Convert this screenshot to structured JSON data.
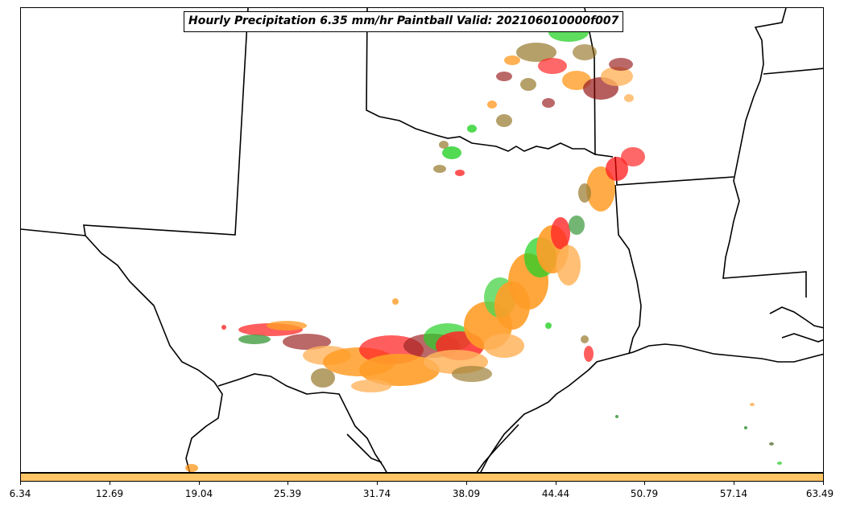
{
  "title": "Hourly Precipitation 6.35 mm/hr Paintball Valid: 202106010000f007",
  "map": {
    "region": "Southern Plains / Texas",
    "colors": {
      "borders": "#000000",
      "colorbar_fill": "#ffc466",
      "paintball_members": [
        "#ff8c00",
        "#ff0000",
        "#00c800",
        "#8b0000",
        "#8b6914",
        "#ffa640",
        "#32cd32",
        "#228b22",
        "#b22222",
        "#556b2f"
      ]
    }
  },
  "colorbar": {
    "ticks": [
      "6.34",
      "12.69",
      "19.04",
      "25.39",
      "31.74",
      "38.09",
      "44.44",
      "50.79",
      "57.14",
      "63.49"
    ]
  }
}
